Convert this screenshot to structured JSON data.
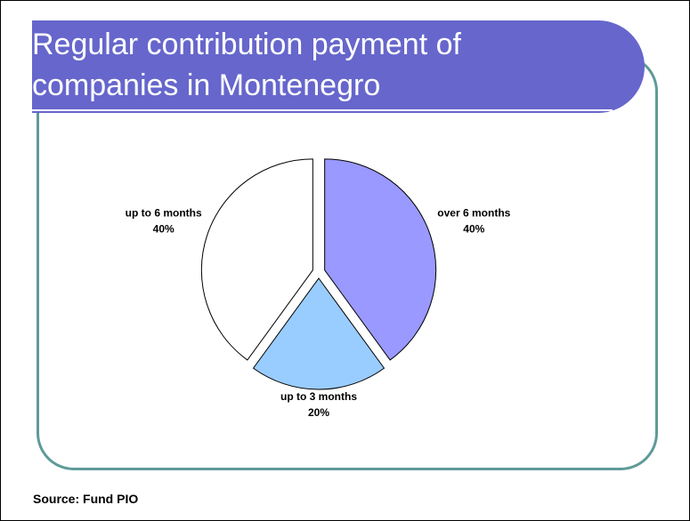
{
  "chart_data": {
    "type": "pie",
    "title": "Regular contribution payment of companies in Montenegro",
    "categories": [
      "over 6 months",
      "up to 3 months",
      "up to 6 months"
    ],
    "values": [
      40,
      20,
      40
    ],
    "value_labels": [
      "40%",
      "20%",
      "40%"
    ],
    "colors": [
      "#9999ff",
      "#99ccff",
      "#ffffff"
    ],
    "source": "Source: Fund PIO"
  }
}
